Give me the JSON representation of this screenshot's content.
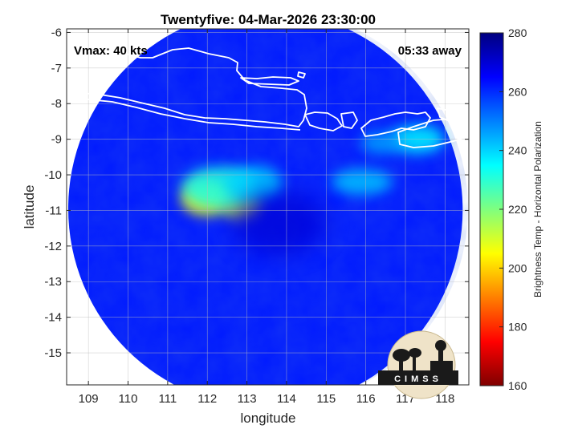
{
  "chart_data": {
    "type": "heatmap",
    "title": "Twentyfive: 04-Mar-2026 23:30:00",
    "xlabel": "longitude",
    "ylabel": "latitude",
    "xlim": [
      108.45,
      118.6
    ],
    "ylim": [
      -15.9,
      -5.9
    ],
    "x_ticks": [
      109,
      110,
      111,
      112,
      113,
      114,
      115,
      116,
      117,
      118
    ],
    "y_ticks": [
      -6,
      -7,
      -8,
      -9,
      -10,
      -11,
      -12,
      -13,
      -14,
      -15
    ],
    "grid": true,
    "annotations": {
      "vmax": "Vmax: 40 kts",
      "away": "05:33 away"
    },
    "colorbar": {
      "label": "Brightness Temp - Horizontal Polarization",
      "min": 160,
      "max": 280,
      "ticks": [
        160,
        180,
        200,
        220,
        240,
        260,
        280
      ],
      "colormap": "jet"
    },
    "swath": {
      "center_lon": 113.4,
      "center_lat": -10.98,
      "background_tb": 262,
      "storm_center": [
        113.8,
        -11.35
      ],
      "features": [
        {
          "lon": 111.95,
          "lat": -10.65,
          "tb": 205
        },
        {
          "lon": 112.85,
          "lat": -10.85,
          "tb": 208
        },
        {
          "lon": 112.3,
          "lat": -10.35,
          "tb": 232
        },
        {
          "lon": 113.2,
          "lat": -10.25,
          "tb": 240
        },
        {
          "lon": 115.9,
          "lat": -10.2,
          "tb": 242
        },
        {
          "lon": 117.3,
          "lat": -9.0,
          "tb": 236
        },
        {
          "lon": 116.4,
          "lat": -9.1,
          "tb": 246
        },
        {
          "lon": 113.8,
          "lat": -11.35,
          "tb": 270
        }
      ]
    }
  },
  "logo": {
    "text": "CIMSS"
  }
}
